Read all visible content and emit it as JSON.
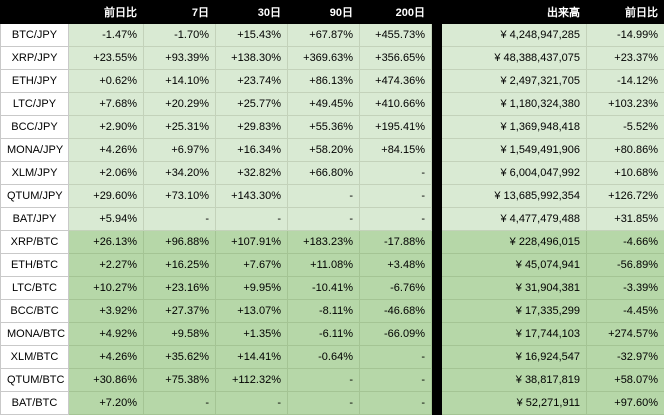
{
  "colors": {
    "header_bg": "#000000",
    "header_text": "#ffffff",
    "pair_bg": "#ffffff",
    "jpy_section_bg": "#d9ead3",
    "btc_section_bg": "#b6d7a8",
    "separator_bg": "#000000"
  },
  "chart_data": {
    "type": "table",
    "columns": [
      "",
      "前日比",
      "7日",
      "30日",
      "90日",
      "200日",
      "出来高",
      "前日比"
    ],
    "legend_position": "none",
    "sections": [
      {
        "name": "JPY",
        "bg": "#d9ead3",
        "rows": [
          [
            "BTC/JPY",
            "-1.47%",
            "-1.70%",
            "+15.43%",
            "+67.87%",
            "+455.73%",
            "¥ 4,248,947,285",
            "-14.99%"
          ],
          [
            "XRP/JPY",
            "+23.55%",
            "+93.39%",
            "+138.30%",
            "+369.63%",
            "+356.65%",
            "¥ 48,388,437,075",
            "+23.37%"
          ],
          [
            "ETH/JPY",
            "+0.62%",
            "+14.10%",
            "+23.74%",
            "+86.13%",
            "+474.36%",
            "¥ 2,497,321,705",
            "-14.12%"
          ],
          [
            "LTC/JPY",
            "+7.68%",
            "+20.29%",
            "+25.77%",
            "+49.45%",
            "+410.66%",
            "¥ 1,180,324,380",
            "+103.23%"
          ],
          [
            "BCC/JPY",
            "+2.90%",
            "+25.31%",
            "+29.83%",
            "+55.36%",
            "+195.41%",
            "¥ 1,369,948,418",
            "-5.52%"
          ],
          [
            "MONA/JPY",
            "+4.26%",
            "+6.97%",
            "+16.34%",
            "+58.20%",
            "+84.15%",
            "¥ 1,549,491,906",
            "+80.86%"
          ],
          [
            "XLM/JPY",
            "+2.06%",
            "+34.20%",
            "+32.82%",
            "+66.80%",
            "-",
            "¥ 6,004,047,992",
            "+10.68%"
          ],
          [
            "QTUM/JPY",
            "+29.60%",
            "+73.10%",
            "+143.30%",
            "-",
            "-",
            "¥ 13,685,992,354",
            "+126.72%"
          ],
          [
            "BAT/JPY",
            "+5.94%",
            "-",
            "-",
            "-",
            "-",
            "¥ 4,477,479,488",
            "+31.85%"
          ]
        ]
      },
      {
        "name": "BTC",
        "bg": "#b6d7a8",
        "rows": [
          [
            "XRP/BTC",
            "+26.13%",
            "+96.88%",
            "+107.91%",
            "+183.23%",
            "-17.88%",
            "¥ 228,496,015",
            "-4.66%"
          ],
          [
            "ETH/BTC",
            "+2.27%",
            "+16.25%",
            "+7.67%",
            "+11.08%",
            "+3.48%",
            "¥ 45,074,941",
            "-56.89%"
          ],
          [
            "LTC/BTC",
            "+10.27%",
            "+23.16%",
            "+9.95%",
            "-10.41%",
            "-6.76%",
            "¥ 31,904,381",
            "-3.39%"
          ],
          [
            "BCC/BTC",
            "+3.92%",
            "+27.37%",
            "+13.07%",
            "-8.11%",
            "-46.68%",
            "¥ 17,335,299",
            "-4.45%"
          ],
          [
            "MONA/BTC",
            "+4.92%",
            "+9.58%",
            "+1.35%",
            "-6.11%",
            "-66.09%",
            "¥ 17,744,103",
            "+274.57%"
          ],
          [
            "XLM/BTC",
            "+4.26%",
            "+35.62%",
            "+14.41%",
            "-0.64%",
            "-",
            "¥ 16,924,547",
            "-32.97%"
          ],
          [
            "QTUM/BTC",
            "+30.86%",
            "+75.38%",
            "+112.32%",
            "-",
            "-",
            "¥ 38,817,819",
            "+58.07%"
          ],
          [
            "BAT/BTC",
            "+7.20%",
            "-",
            "-",
            "-",
            "-",
            "¥ 52,271,911",
            "+97.60%"
          ]
        ]
      }
    ]
  }
}
